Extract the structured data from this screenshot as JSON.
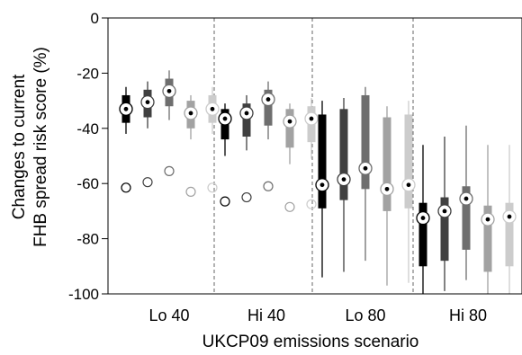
{
  "chart_data": {
    "type": "box",
    "ylabel": [
      "Changes to current",
      "FHB spread risk score (%)"
    ],
    "xlabel": "UKCP09 emissions scenario",
    "ylim": [
      -100,
      0
    ],
    "yticks": [
      0,
      -20,
      -40,
      -60,
      -80,
      -100
    ],
    "ytick_labels": [
      "0",
      "-20",
      "-40",
      "-60",
      "-80",
      "-100"
    ],
    "categories": [
      "Lo 40",
      "Hi 40",
      "Lo 80",
      "Hi 80"
    ],
    "group_separators": "dashed vertical lines between scenario groups",
    "series_colors": [
      "#000000",
      "#404040",
      "#6e6e6e",
      "#a2a2a2",
      "#cccccc"
    ],
    "groups": [
      {
        "label": "Lo 40",
        "boxes": [
          {
            "min": -42,
            "q1": -38,
            "median": -33,
            "q3": -28,
            "max": -25,
            "circle": -61.5
          },
          {
            "min": -40,
            "q1": -36,
            "median": -30.5,
            "q3": -26,
            "max": -23,
            "circle": -59.5
          },
          {
            "min": -37,
            "q1": -32,
            "median": -26.5,
            "q3": -22,
            "max": -19,
            "circle": -55.5
          },
          {
            "min": -44,
            "q1": -40,
            "median": -34.5,
            "q3": -30,
            "max": -28,
            "circle": -63
          },
          {
            "min": -42,
            "q1": -38,
            "median": -33,
            "q3": -28,
            "max": -25,
            "circle": -61.5
          }
        ]
      },
      {
        "label": "Hi 40",
        "boxes": [
          {
            "min": -50,
            "q1": -44,
            "median": -36.5,
            "q3": -33,
            "max": -31,
            "circle": -66.5
          },
          {
            "min": -48,
            "q1": -43,
            "median": -34.5,
            "q3": -31,
            "max": -28,
            "circle": -65
          },
          {
            "min": -44,
            "q1": -39,
            "median": -29.5,
            "q3": -26,
            "max": -23,
            "circle": -61
          },
          {
            "min": -53,
            "q1": -47,
            "median": -37.5,
            "q3": -33,
            "max": -31,
            "circle": -68.5
          },
          {
            "min": -51,
            "q1": -45,
            "median": -36.5,
            "q3": -32,
            "max": -29,
            "circle": -67.5
          }
        ]
      },
      {
        "label": "Lo 80",
        "boxes": [
          {
            "min": -94,
            "q1": -69,
            "median": -60.5,
            "q3": -35,
            "max": -30
          },
          {
            "min": -92,
            "q1": -66,
            "median": -58.5,
            "q3": -33,
            "max": -29
          },
          {
            "min": -88,
            "q1": -62,
            "median": -54.5,
            "q3": -28,
            "max": -25
          },
          {
            "min": -97,
            "q1": -70,
            "median": -62,
            "q3": -36,
            "max": -32
          },
          {
            "min": -96,
            "q1": -69,
            "median": -60.5,
            "q3": -35,
            "max": -30
          }
        ]
      },
      {
        "label": "Hi 80",
        "boxes": [
          {
            "min": -100,
            "q1": -90,
            "median": -72.5,
            "q3": -67,
            "max": -46
          },
          {
            "min": -99,
            "q1": -88,
            "median": -70,
            "q3": -65,
            "max": -43
          },
          {
            "min": -95,
            "q1": -84,
            "median": -65.5,
            "q3": -61,
            "max": -39
          },
          {
            "min": -100,
            "q1": -92,
            "median": -73,
            "q3": -68,
            "max": -46
          },
          {
            "min": -100,
            "q1": -90,
            "median": -72,
            "q3": -67,
            "max": -46
          }
        ]
      }
    ]
  }
}
